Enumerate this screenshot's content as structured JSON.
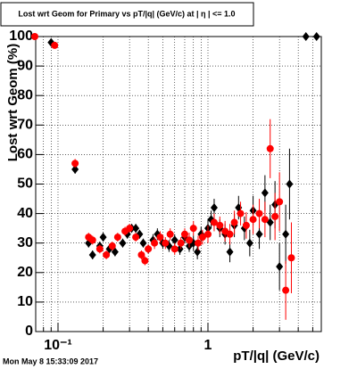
{
  "chart_data": {
    "type": "scatter",
    "title": "Lost wrt Geom for Primary vs pT/|q| (GeV/c) at | η | <= 1.0",
    "x_label": "pT/|q| (GeV/c)",
    "y_label": "Lost wrt Geom (%)",
    "timestamp": "Mon May  8 15:33:09 2017",
    "xscale": "log",
    "grid": true,
    "xlim": [
      0.071,
      5.7
    ],
    "ylim": [
      0,
      100
    ],
    "xticks": [
      {
        "value": 0.1,
        "label": "10⁻¹"
      },
      1
    ],
    "xminorticks": [
      0.08,
      0.09,
      0.2,
      0.3,
      0.4,
      0.5,
      0.6,
      0.7,
      0.8,
      0.9,
      2,
      3,
      4,
      5
    ],
    "yticks": [
      0,
      10,
      20,
      30,
      40,
      50,
      60,
      70,
      80,
      90,
      100
    ],
    "series": [
      {
        "color": "#000000",
        "marker": "diamond",
        "x": [
          0.09,
          0.13,
          0.16,
          0.17,
          0.19,
          0.2,
          0.22,
          0.24,
          0.27,
          0.29,
          0.31,
          0.33,
          0.35,
          0.37,
          0.4,
          0.43,
          0.46,
          0.5,
          0.55,
          0.6,
          0.65,
          0.7,
          0.75,
          0.8,
          0.85,
          0.9,
          1.0,
          1.05,
          1.1,
          1.2,
          1.3,
          1.4,
          1.5,
          1.6,
          1.75,
          1.9,
          2.0,
          2.2,
          2.4,
          2.6,
          2.8,
          3.0,
          3.3,
          3.5,
          4.5,
          5.3
        ],
        "values": [
          98,
          55,
          30,
          26,
          29,
          32,
          28,
          27,
          30,
          33,
          35,
          35,
          33,
          30,
          28,
          31,
          33,
          30,
          29,
          31,
          28,
          32,
          29,
          30,
          27,
          33,
          35,
          38,
          42,
          35,
          33,
          27,
          36,
          42,
          35,
          30,
          41,
          33,
          47,
          37,
          43,
          22,
          33,
          50,
          100,
          100
        ],
        "errors": [
          1,
          1.5,
          1.5,
          1.5,
          1.5,
          1.5,
          1.5,
          1.5,
          1.5,
          1.5,
          1.5,
          1.5,
          1.5,
          1.5,
          1.5,
          2,
          2,
          2,
          2,
          2,
          2,
          2,
          2,
          2.5,
          2.5,
          2.5,
          3,
          3,
          3,
          3,
          3.5,
          3.5,
          4,
          4,
          4,
          4.5,
          5,
          5,
          6,
          6,
          8,
          8,
          10,
          12,
          1,
          1
        ]
      },
      {
        "color": "#ff0000",
        "marker": "circle",
        "x": [
          0.07,
          0.095,
          0.13,
          0.16,
          0.17,
          0.19,
          0.21,
          0.23,
          0.25,
          0.28,
          0.3,
          0.33,
          0.36,
          0.38,
          0.4,
          0.44,
          0.48,
          0.52,
          0.56,
          0.6,
          0.66,
          0.7,
          0.75,
          0.8,
          0.86,
          0.92,
          1.0,
          1.1,
          1.2,
          1.3,
          1.4,
          1.5,
          1.65,
          1.8,
          2.0,
          2.2,
          2.4,
          2.6,
          2.8,
          3.0,
          3.3,
          3.6
        ],
        "values": [
          100,
          97,
          57,
          32,
          31,
          28,
          26,
          29,
          32,
          34,
          35,
          32,
          26,
          24,
          28,
          30,
          32,
          30,
          33,
          28,
          30,
          33,
          31,
          35,
          30,
          32,
          33,
          37,
          36,
          34,
          33,
          37,
          40,
          36,
          38,
          40,
          38,
          62,
          39,
          44,
          14,
          25
        ],
        "errors": [
          1,
          1,
          1.5,
          1.5,
          1.5,
          1.5,
          1.5,
          1.5,
          1.5,
          1.5,
          1.5,
          1.5,
          1.5,
          1.5,
          1.5,
          2,
          2,
          2,
          2,
          2,
          2,
          2,
          2.5,
          2.5,
          2.5,
          2.5,
          3,
          3,
          3,
          3.5,
          3.5,
          4,
          4,
          4.5,
          5,
          5,
          6,
          10,
          8,
          10,
          10,
          12
        ]
      }
    ]
  }
}
